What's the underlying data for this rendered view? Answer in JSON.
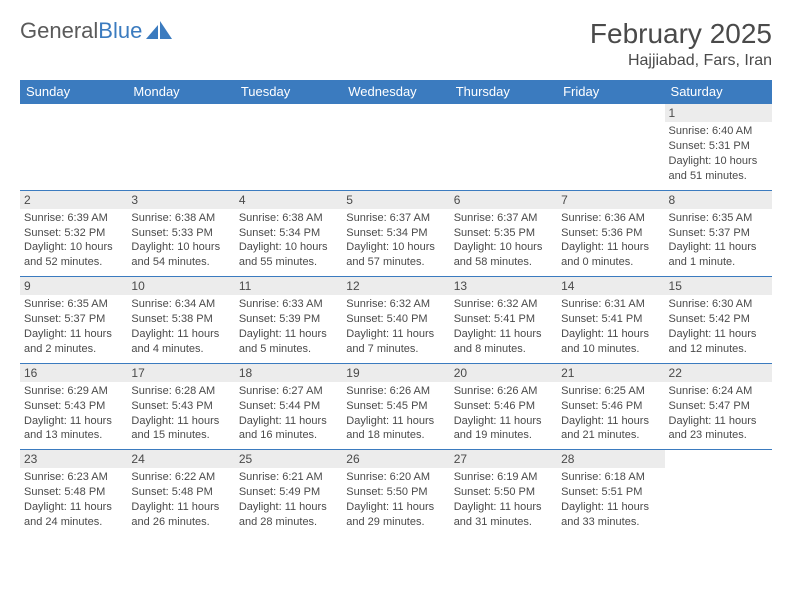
{
  "logo": {
    "text_a": "General",
    "text_b": "Blue",
    "icon_color": "#3b7bbf"
  },
  "header": {
    "title": "February 2025",
    "location": "Hajjiabad, Fars, Iran",
    "title_color": "#4a4a4a",
    "title_fontsize": 28,
    "location_fontsize": 16
  },
  "table": {
    "header_bg": "#3b7bbf",
    "header_fg": "#ffffff",
    "row_border_color": "#3b7bbf",
    "daynum_bg": "#ececec",
    "cell_fontsize": 11,
    "columns": [
      "Sunday",
      "Monday",
      "Tuesday",
      "Wednesday",
      "Thursday",
      "Friday",
      "Saturday"
    ]
  },
  "weeks": [
    [
      {
        "empty": true
      },
      {
        "empty": true
      },
      {
        "empty": true
      },
      {
        "empty": true
      },
      {
        "empty": true
      },
      {
        "empty": true
      },
      {
        "day": "1",
        "sunrise": "Sunrise: 6:40 AM",
        "sunset": "Sunset: 5:31 PM",
        "daylight": "Daylight: 10 hours and 51 minutes."
      }
    ],
    [
      {
        "day": "2",
        "sunrise": "Sunrise: 6:39 AM",
        "sunset": "Sunset: 5:32 PM",
        "daylight": "Daylight: 10 hours and 52 minutes."
      },
      {
        "day": "3",
        "sunrise": "Sunrise: 6:38 AM",
        "sunset": "Sunset: 5:33 PM",
        "daylight": "Daylight: 10 hours and 54 minutes."
      },
      {
        "day": "4",
        "sunrise": "Sunrise: 6:38 AM",
        "sunset": "Sunset: 5:34 PM",
        "daylight": "Daylight: 10 hours and 55 minutes."
      },
      {
        "day": "5",
        "sunrise": "Sunrise: 6:37 AM",
        "sunset": "Sunset: 5:34 PM",
        "daylight": "Daylight: 10 hours and 57 minutes."
      },
      {
        "day": "6",
        "sunrise": "Sunrise: 6:37 AM",
        "sunset": "Sunset: 5:35 PM",
        "daylight": "Daylight: 10 hours and 58 minutes."
      },
      {
        "day": "7",
        "sunrise": "Sunrise: 6:36 AM",
        "sunset": "Sunset: 5:36 PM",
        "daylight": "Daylight: 11 hours and 0 minutes."
      },
      {
        "day": "8",
        "sunrise": "Sunrise: 6:35 AM",
        "sunset": "Sunset: 5:37 PM",
        "daylight": "Daylight: 11 hours and 1 minute."
      }
    ],
    [
      {
        "day": "9",
        "sunrise": "Sunrise: 6:35 AM",
        "sunset": "Sunset: 5:37 PM",
        "daylight": "Daylight: 11 hours and 2 minutes."
      },
      {
        "day": "10",
        "sunrise": "Sunrise: 6:34 AM",
        "sunset": "Sunset: 5:38 PM",
        "daylight": "Daylight: 11 hours and 4 minutes."
      },
      {
        "day": "11",
        "sunrise": "Sunrise: 6:33 AM",
        "sunset": "Sunset: 5:39 PM",
        "daylight": "Daylight: 11 hours and 5 minutes."
      },
      {
        "day": "12",
        "sunrise": "Sunrise: 6:32 AM",
        "sunset": "Sunset: 5:40 PM",
        "daylight": "Daylight: 11 hours and 7 minutes."
      },
      {
        "day": "13",
        "sunrise": "Sunrise: 6:32 AM",
        "sunset": "Sunset: 5:41 PM",
        "daylight": "Daylight: 11 hours and 8 minutes."
      },
      {
        "day": "14",
        "sunrise": "Sunrise: 6:31 AM",
        "sunset": "Sunset: 5:41 PM",
        "daylight": "Daylight: 11 hours and 10 minutes."
      },
      {
        "day": "15",
        "sunrise": "Sunrise: 6:30 AM",
        "sunset": "Sunset: 5:42 PM",
        "daylight": "Daylight: 11 hours and 12 minutes."
      }
    ],
    [
      {
        "day": "16",
        "sunrise": "Sunrise: 6:29 AM",
        "sunset": "Sunset: 5:43 PM",
        "daylight": "Daylight: 11 hours and 13 minutes."
      },
      {
        "day": "17",
        "sunrise": "Sunrise: 6:28 AM",
        "sunset": "Sunset: 5:43 PM",
        "daylight": "Daylight: 11 hours and 15 minutes."
      },
      {
        "day": "18",
        "sunrise": "Sunrise: 6:27 AM",
        "sunset": "Sunset: 5:44 PM",
        "daylight": "Daylight: 11 hours and 16 minutes."
      },
      {
        "day": "19",
        "sunrise": "Sunrise: 6:26 AM",
        "sunset": "Sunset: 5:45 PM",
        "daylight": "Daylight: 11 hours and 18 minutes."
      },
      {
        "day": "20",
        "sunrise": "Sunrise: 6:26 AM",
        "sunset": "Sunset: 5:46 PM",
        "daylight": "Daylight: 11 hours and 19 minutes."
      },
      {
        "day": "21",
        "sunrise": "Sunrise: 6:25 AM",
        "sunset": "Sunset: 5:46 PM",
        "daylight": "Daylight: 11 hours and 21 minutes."
      },
      {
        "day": "22",
        "sunrise": "Sunrise: 6:24 AM",
        "sunset": "Sunset: 5:47 PM",
        "daylight": "Daylight: 11 hours and 23 minutes."
      }
    ],
    [
      {
        "day": "23",
        "sunrise": "Sunrise: 6:23 AM",
        "sunset": "Sunset: 5:48 PM",
        "daylight": "Daylight: 11 hours and 24 minutes."
      },
      {
        "day": "24",
        "sunrise": "Sunrise: 6:22 AM",
        "sunset": "Sunset: 5:48 PM",
        "daylight": "Daylight: 11 hours and 26 minutes."
      },
      {
        "day": "25",
        "sunrise": "Sunrise: 6:21 AM",
        "sunset": "Sunset: 5:49 PM",
        "daylight": "Daylight: 11 hours and 28 minutes."
      },
      {
        "day": "26",
        "sunrise": "Sunrise: 6:20 AM",
        "sunset": "Sunset: 5:50 PM",
        "daylight": "Daylight: 11 hours and 29 minutes."
      },
      {
        "day": "27",
        "sunrise": "Sunrise: 6:19 AM",
        "sunset": "Sunset: 5:50 PM",
        "daylight": "Daylight: 11 hours and 31 minutes."
      },
      {
        "day": "28",
        "sunrise": "Sunrise: 6:18 AM",
        "sunset": "Sunset: 5:51 PM",
        "daylight": "Daylight: 11 hours and 33 minutes."
      },
      {
        "empty": true
      }
    ]
  ]
}
